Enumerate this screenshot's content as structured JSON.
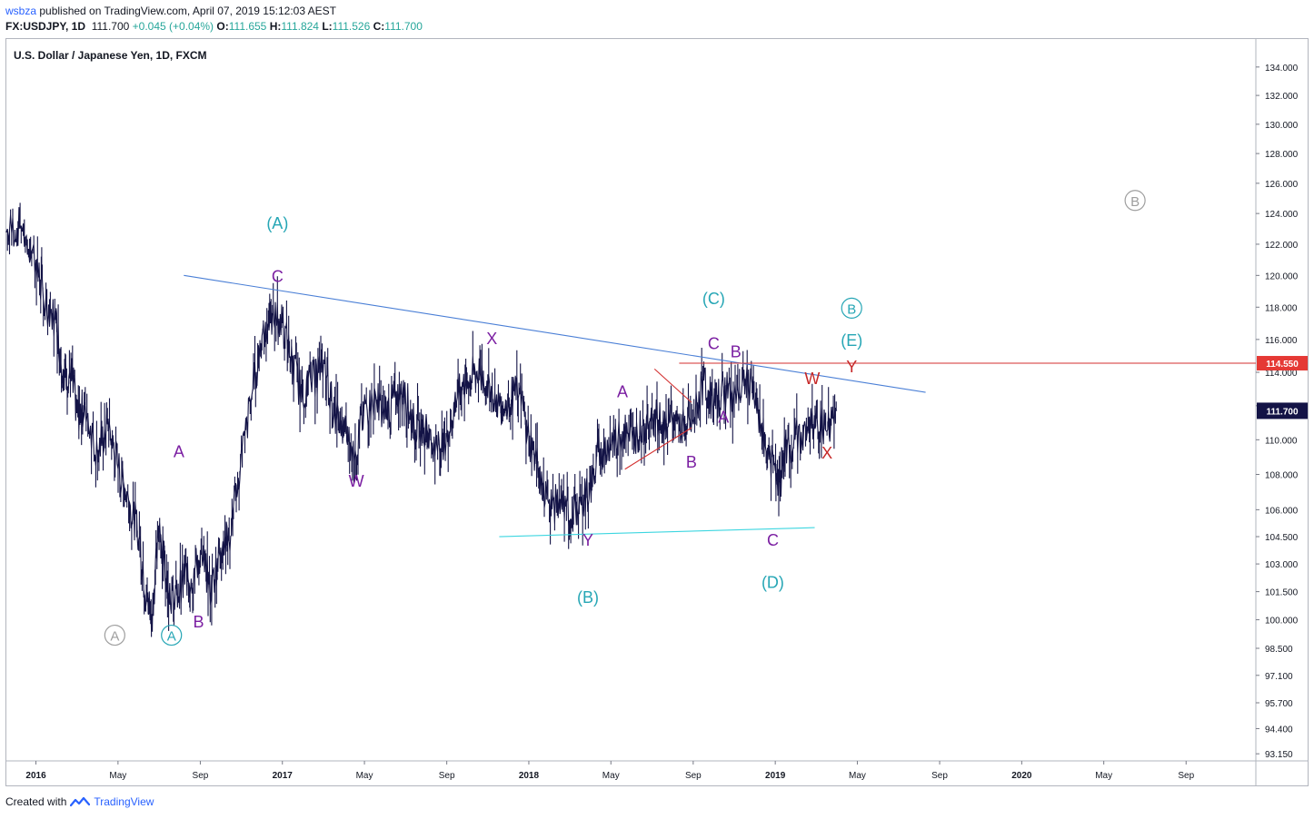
{
  "header": {
    "user": "wsbza",
    "published": " published on TradingView.com, April 07, 2019 15:12:03 AEST",
    "symbol": "FX:USDJPY, 1D",
    "last": "111.700",
    "change": "+0.045 (+0.04%)",
    "o_label": "O:",
    "o_val": "111.655",
    "h_label": "H:",
    "h_val": "111.824",
    "l_label": "L:",
    "l_val": "111.526",
    "c_label": "C:",
    "c_val": "111.700"
  },
  "legend_title": "U.S. Dollar / Japanese Yen, 1D, FXCM",
  "footer": {
    "created_with": "Created with",
    "brand": "TradingView",
    "icon": "tradingview-logo-icon"
  },
  "colors": {
    "candle": "#131346",
    "purple": "#7b1fa2",
    "teal": "#26a6b5",
    "red": "#c62828",
    "gray": "#9e9e9e",
    "blue_line": "#4a7fd6",
    "cyan_line": "#3dd6e0",
    "red_line": "#d32f2f"
  },
  "chart_data": {
    "type": "line",
    "title": "U.S. Dollar / Japanese Yen, 1D, FXCM",
    "x_axis_ticks": [
      "2016",
      "May",
      "Sep",
      "2017",
      "May",
      "Sep",
      "2018",
      "May",
      "Sep",
      "2019",
      "May",
      "Sep",
      "2020",
      "May",
      "Sep"
    ],
    "x_axis_tick_years": [
      2016.0,
      2016.333,
      2016.667,
      2017.0,
      2017.333,
      2017.667,
      2018.0,
      2018.333,
      2018.667,
      2019.0,
      2019.333,
      2019.667,
      2020.0,
      2020.333,
      2020.667
    ],
    "y_axis_ticks": [
      "134.000",
      "132.000",
      "130.000",
      "128.000",
      "126.000",
      "124.000",
      "122.000",
      "120.000",
      "118.000",
      "116.000",
      "114.000",
      "112.000",
      "110.000",
      "108.000",
      "106.000",
      "104.500",
      "103.000",
      "101.500",
      "100.000",
      "98.500",
      "97.100",
      "95.700",
      "94.400",
      "93.150"
    ],
    "y_scale": "log",
    "ylim": [
      92.8,
      136.0
    ],
    "xlim": [
      2015.88,
      2020.95
    ],
    "series": [
      {
        "x": [
          2015.88,
          2015.94,
          2016.0,
          2016.03,
          2016.08,
          2016.11,
          2016.14,
          2016.17,
          2016.2,
          2016.25,
          2016.29,
          2016.33,
          2016.38,
          2016.42,
          2016.45,
          2016.47,
          2016.5,
          2016.53,
          2016.56,
          2016.6,
          2016.63,
          2016.67,
          2016.71,
          2016.75,
          2016.79,
          2016.83,
          2016.88,
          2016.92,
          2016.96,
          2017.0,
          2017.04,
          2017.08,
          2017.13,
          2017.17,
          2017.21,
          2017.25,
          2017.29,
          2017.33,
          2017.38,
          2017.42,
          2017.46,
          2017.5,
          2017.54,
          2017.58,
          2017.63,
          2017.67,
          2017.71,
          2017.75,
          2017.79,
          2017.83,
          2017.88,
          2017.92,
          2017.96,
          2018.0,
          2018.04,
          2018.08,
          2018.13,
          2018.17,
          2018.21,
          2018.25,
          2018.29,
          2018.33,
          2018.38,
          2018.42,
          2018.46,
          2018.5,
          2018.54,
          2018.58,
          2018.63,
          2018.67,
          2018.71,
          2018.75,
          2018.79,
          2018.83,
          2018.88,
          2018.92,
          2018.96,
          2019.0,
          2019.02,
          2019.04,
          2019.08,
          2019.13,
          2019.17,
          2019.21,
          2019.25
        ],
        "values": [
          122.8,
          123.2,
          121.0,
          118.5,
          117.2,
          114.2,
          113.8,
          111.5,
          112.0,
          109.2,
          110.9,
          108.6,
          106.4,
          104.5,
          101.1,
          100.3,
          104.8,
          102.4,
          100.8,
          102.4,
          102.2,
          103.5,
          101.5,
          103.9,
          104.5,
          108.5,
          113.0,
          116.5,
          117.5,
          117.0,
          114.5,
          112.8,
          113.6,
          114.5,
          111.5,
          110.6,
          109.0,
          111.5,
          112.5,
          111.5,
          112.5,
          112.5,
          110.6,
          110.6,
          109.3,
          110.5,
          112.5,
          113.5,
          114.0,
          113.5,
          112.0,
          112.5,
          112.7,
          110.2,
          108.3,
          106.4,
          106.2,
          105.5,
          106.4,
          107.2,
          109.5,
          109.8,
          110.5,
          110.0,
          110.8,
          111.4,
          110.9,
          111.5,
          110.6,
          111.3,
          113.5,
          112.0,
          113.0,
          112.6,
          113.5,
          112.5,
          109.6,
          108.2,
          107.5,
          109.5,
          110.0,
          110.5,
          111.2,
          110.5,
          111.7
        ]
      }
    ],
    "annotations": [
      {
        "text": "C",
        "x": 2016.98,
        "y": 119.6,
        "color": "purple"
      },
      {
        "text": "(A)",
        "x": 2016.98,
        "y": 123.0,
        "color": "teal"
      },
      {
        "text": "A",
        "x": 2016.58,
        "y": 109.0,
        "color": "purple"
      },
      {
        "text": "B",
        "x": 2016.66,
        "y": 99.6,
        "color": "purple"
      },
      {
        "text": "A",
        "x": 2016.55,
        "y": 98.9,
        "color": "teal",
        "circled": true
      },
      {
        "text": "A",
        "x": 2016.32,
        "y": 98.9,
        "color": "gray",
        "circled": true
      },
      {
        "text": "W",
        "x": 2017.3,
        "y": 107.3,
        "color": "purple"
      },
      {
        "text": "X",
        "x": 2017.85,
        "y": 115.7,
        "color": "purple"
      },
      {
        "text": "Y",
        "x": 2018.24,
        "y": 104.0,
        "color": "purple"
      },
      {
        "text": "(B)",
        "x": 2018.24,
        "y": 100.9,
        "color": "teal"
      },
      {
        "text": "A",
        "x": 2018.38,
        "y": 112.5,
        "color": "purple"
      },
      {
        "text": "B",
        "x": 2018.66,
        "y": 108.4,
        "color": "purple"
      },
      {
        "text": "(C)",
        "x": 2018.75,
        "y": 118.2,
        "color": "teal"
      },
      {
        "text": "C",
        "x": 2018.75,
        "y": 115.4,
        "color": "purple"
      },
      {
        "text": "B",
        "x": 2018.84,
        "y": 114.9,
        "color": "purple"
      },
      {
        "text": "A",
        "x": 2018.79,
        "y": 111.0,
        "color": "purple"
      },
      {
        "text": "C",
        "x": 2018.99,
        "y": 104.0,
        "color": "purple"
      },
      {
        "text": "(D)",
        "x": 2018.99,
        "y": 101.7,
        "color": "teal"
      },
      {
        "text": "W",
        "x": 2019.15,
        "y": 113.3,
        "color": "red"
      },
      {
        "text": "X",
        "x": 2019.21,
        "y": 108.9,
        "color": "red"
      },
      {
        "text": "(E)",
        "x": 2019.31,
        "y": 115.6,
        "color": "teal"
      },
      {
        "text": "Y",
        "x": 2019.31,
        "y": 114.0,
        "color": "red"
      },
      {
        "text": "B",
        "x": 2019.31,
        "y": 117.6,
        "color": "teal",
        "circled": true
      },
      {
        "text": "B",
        "x": 2020.46,
        "y": 124.5,
        "color": "gray",
        "circled": true
      }
    ],
    "trendlines": [
      {
        "name": "upper-trendline",
        "x1": 2016.6,
        "y1": 120.0,
        "x2": 2019.61,
        "y2": 112.8,
        "color": "blue_line"
      },
      {
        "name": "lower-trendline",
        "x1": 2017.88,
        "y1": 104.5,
        "x2": 2019.16,
        "y2": 105.0,
        "color": "cyan_line"
      },
      {
        "name": "triangle-upper",
        "x1": 2018.51,
        "y1": 114.2,
        "x2": 2018.66,
        "y2": 112.2,
        "color": "red_line"
      },
      {
        "name": "triangle-lower",
        "x1": 2018.39,
        "y1": 108.3,
        "x2": 2018.66,
        "y2": 110.7,
        "color": "red_line"
      }
    ],
    "hline": {
      "value": 114.55,
      "label": "114.550",
      "x_start": 2018.61,
      "color": "red_line"
    },
    "last_price": {
      "value": 111.7,
      "label": "111.700"
    },
    "grid": false
  }
}
